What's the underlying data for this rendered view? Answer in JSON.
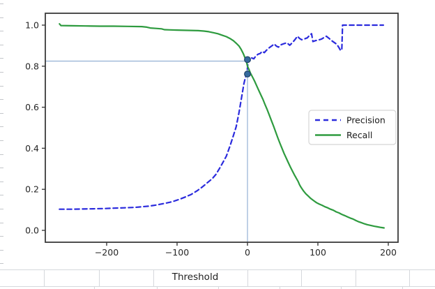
{
  "figure": {
    "background": "#ffffff",
    "spine_color": "#3b3b3b",
    "tick_label_color": "#262626"
  },
  "chart_data": {
    "type": "line",
    "title": "",
    "xlabel": "Threshold",
    "ylabel": "",
    "xlim": [
      -287,
      216
    ],
    "ylim": [
      -0.055,
      1.06
    ],
    "grid": "off",
    "x_ticks": {
      "values": [
        -200,
        -100,
        0,
        100,
        200
      ],
      "labels": [
        "−200",
        "−100",
        "0",
        "100",
        "200"
      ]
    },
    "y_ticks": {
      "values": [
        1.0,
        0.8,
        0.6,
        0.4,
        0.2,
        0.0
      ],
      "labels": [
        "1.0",
        "0.8",
        "0.6",
        "0.4",
        "0.2",
        "0.0"
      ]
    },
    "legend": {
      "position": "center-right",
      "border_color": "#d5d5d5",
      "text_color": "#1a1a1a",
      "entries": [
        {
          "label": "Precision",
          "style": "dashed",
          "color": "#2b2bdd"
        },
        {
          "label": "Recall",
          "style": "solid",
          "color": "#2e9b3f"
        }
      ]
    },
    "series": [
      {
        "name": "Precision",
        "color": "#2b2bdd",
        "style": "dashed",
        "points": [
          [
            -267,
            0.103
          ],
          [
            -250,
            0.103
          ],
          [
            -235,
            0.104
          ],
          [
            -220,
            0.105
          ],
          [
            -205,
            0.106
          ],
          [
            -190,
            0.108
          ],
          [
            -175,
            0.11
          ],
          [
            -160,
            0.112
          ],
          [
            -150,
            0.115
          ],
          [
            -140,
            0.118
          ],
          [
            -130,
            0.123
          ],
          [
            -120,
            0.13
          ],
          [
            -110,
            0.137
          ],
          [
            -104,
            0.143
          ],
          [
            -96,
            0.152
          ],
          [
            -88,
            0.163
          ],
          [
            -80,
            0.175
          ],
          [
            -72,
            0.192
          ],
          [
            -64,
            0.212
          ],
          [
            -57,
            0.232
          ],
          [
            -50,
            0.252
          ],
          [
            -45,
            0.272
          ],
          [
            -40,
            0.3
          ],
          [
            -35,
            0.33
          ],
          [
            -30,
            0.362
          ],
          [
            -25,
            0.41
          ],
          [
            -20,
            0.462
          ],
          [
            -16,
            0.505
          ],
          [
            -12,
            0.575
          ],
          [
            -8,
            0.655
          ],
          [
            -5,
            0.715
          ],
          [
            -3,
            0.745
          ],
          [
            -1,
            0.762
          ],
          [
            0,
            0.792
          ],
          [
            1,
            0.825
          ],
          [
            2,
            0.835
          ],
          [
            4,
            0.828
          ],
          [
            6,
            0.84
          ],
          [
            9,
            0.836
          ],
          [
            12,
            0.85
          ],
          [
            15,
            0.858
          ],
          [
            18,
            0.862
          ],
          [
            21,
            0.872
          ],
          [
            24,
            0.866
          ],
          [
            27,
            0.878
          ],
          [
            31,
            0.89
          ],
          [
            35,
            0.9
          ],
          [
            38,
            0.908
          ],
          [
            41,
            0.898
          ],
          [
            44,
            0.893
          ],
          [
            48,
            0.905
          ],
          [
            52,
            0.91
          ],
          [
            56,
            0.914
          ],
          [
            60,
            0.902
          ],
          [
            64,
            0.915
          ],
          [
            68,
            0.932
          ],
          [
            71,
            0.946
          ],
          [
            74,
            0.935
          ],
          [
            77,
            0.929
          ],
          [
            81,
            0.933
          ],
          [
            85,
            0.938
          ],
          [
            88,
            0.95
          ],
          [
            91,
            0.958
          ],
          [
            93,
            0.92
          ],
          [
            97,
            0.925
          ],
          [
            101,
            0.928
          ],
          [
            105,
            0.932
          ],
          [
            109,
            0.94
          ],
          [
            112,
            0.946
          ],
          [
            116,
            0.935
          ],
          [
            119,
            0.926
          ],
          [
            123,
            0.916
          ],
          [
            127,
            0.906
          ],
          [
            130,
            0.89
          ],
          [
            132,
            0.878
          ],
          [
            134,
            0.878
          ],
          [
            135,
            1.0
          ],
          [
            145,
            1.0
          ],
          [
            155,
            1.0
          ],
          [
            165,
            1.0
          ],
          [
            175,
            1.0
          ],
          [
            185,
            1.0
          ],
          [
            193,
            1.0
          ]
        ]
      },
      {
        "name": "Recall",
        "color": "#2e9b3f",
        "style": "solid",
        "points": [
          [
            -267,
            1.006
          ],
          [
            -265,
            0.998
          ],
          [
            -250,
            0.997
          ],
          [
            -230,
            0.996
          ],
          [
            -210,
            0.995
          ],
          [
            -190,
            0.995
          ],
          [
            -170,
            0.994
          ],
          [
            -150,
            0.993
          ],
          [
            -143,
            0.99
          ],
          [
            -138,
            0.986
          ],
          [
            -130,
            0.984
          ],
          [
            -122,
            0.982
          ],
          [
            -118,
            0.978
          ],
          [
            -110,
            0.977
          ],
          [
            -100,
            0.976
          ],
          [
            -90,
            0.975
          ],
          [
            -80,
            0.974
          ],
          [
            -70,
            0.973
          ],
          [
            -62,
            0.971
          ],
          [
            -55,
            0.968
          ],
          [
            -48,
            0.963
          ],
          [
            -42,
            0.958
          ],
          [
            -36,
            0.951
          ],
          [
            -30,
            0.944
          ],
          [
            -25,
            0.935
          ],
          [
            -20,
            0.924
          ],
          [
            -16,
            0.912
          ],
          [
            -12,
            0.898
          ],
          [
            -9,
            0.882
          ],
          [
            -6,
            0.862
          ],
          [
            -3,
            0.836
          ],
          [
            -1,
            0.815
          ],
          [
            0,
            0.8
          ],
          [
            2,
            0.785
          ],
          [
            4,
            0.768
          ],
          [
            7,
            0.748
          ],
          [
            10,
            0.728
          ],
          [
            13,
            0.705
          ],
          [
            16,
            0.682
          ],
          [
            19,
            0.66
          ],
          [
            22,
            0.638
          ],
          [
            25,
            0.612
          ],
          [
            28,
            0.588
          ],
          [
            31,
            0.562
          ],
          [
            34,
            0.535
          ],
          [
            37,
            0.508
          ],
          [
            40,
            0.48
          ],
          [
            43,
            0.452
          ],
          [
            46,
            0.425
          ],
          [
            49,
            0.4
          ],
          [
            52,
            0.375
          ],
          [
            55,
            0.352
          ],
          [
            58,
            0.33
          ],
          [
            61,
            0.308
          ],
          [
            64,
            0.288
          ],
          [
            67,
            0.268
          ],
          [
            70,
            0.25
          ],
          [
            72,
            0.238
          ],
          [
            74,
            0.222
          ],
          [
            76,
            0.21
          ],
          [
            78,
            0.2
          ],
          [
            80,
            0.19
          ],
          [
            83,
            0.178
          ],
          [
            86,
            0.168
          ],
          [
            90,
            0.155
          ],
          [
            94,
            0.145
          ],
          [
            98,
            0.135
          ],
          [
            102,
            0.128
          ],
          [
            106,
            0.122
          ],
          [
            110,
            0.115
          ],
          [
            114,
            0.11
          ],
          [
            118,
            0.103
          ],
          [
            122,
            0.098
          ],
          [
            126,
            0.09
          ],
          [
            130,
            0.085
          ],
          [
            134,
            0.078
          ],
          [
            138,
            0.072
          ],
          [
            142,
            0.066
          ],
          [
            146,
            0.06
          ],
          [
            150,
            0.055
          ],
          [
            154,
            0.048
          ],
          [
            158,
            0.042
          ],
          [
            162,
            0.037
          ],
          [
            166,
            0.032
          ],
          [
            170,
            0.028
          ],
          [
            175,
            0.024
          ],
          [
            180,
            0.02
          ],
          [
            185,
            0.017
          ],
          [
            190,
            0.014
          ],
          [
            194,
            0.012
          ]
        ]
      }
    ],
    "annotations": {
      "crosshair": {
        "x": 0,
        "y": 0.825,
        "color": "#7fa1cc"
      },
      "markers": [
        {
          "x": 0,
          "y": 0.832
        },
        {
          "x": 0,
          "y": 0.762
        }
      ],
      "marker_fill": "#356a9e",
      "marker_edge": "#24496e"
    }
  }
}
